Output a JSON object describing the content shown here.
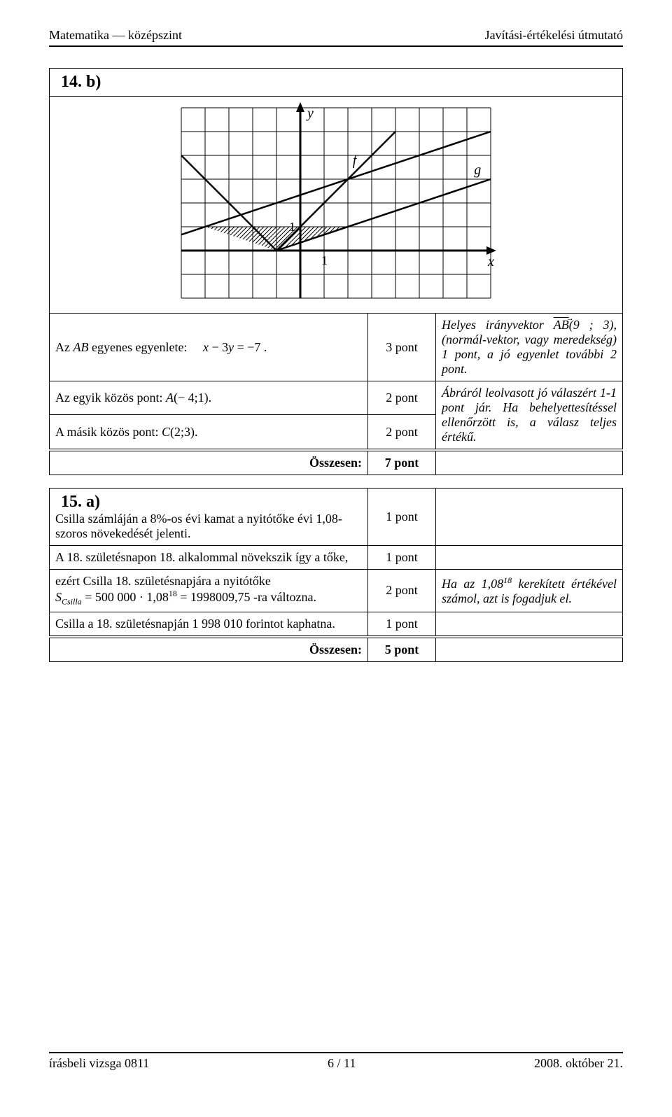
{
  "header": {
    "left": "Matematika — középszint",
    "right": "Javítási-értékelési útmutató"
  },
  "problem14b": {
    "title": "14. b)",
    "chart": {
      "type": "line",
      "grid_color": "#000000",
      "background_color": "#ffffff",
      "cols": 13,
      "rows": 8,
      "origin_col": 5,
      "origin_row": 6,
      "y_label": "y",
      "x_label": "x",
      "f_label": "f",
      "g_label": "g",
      "one_label": "1",
      "lines": [
        {
          "name": "g",
          "pts": [
            [
              -6,
              -1.666
            ],
            [
              9,
              3.333
            ]
          ]
        },
        {
          "name": "f_left",
          "pts": [
            [
              -6,
              5
            ],
            [
              -1,
              0
            ]
          ]
        },
        {
          "name": "f_right",
          "pts": [
            [
              -1,
              0
            ],
            [
              9,
              3.333
            ]
          ]
        },
        {
          "name": "f_left2",
          "pts": [
            [
              -1,
              0
            ],
            [
              3,
              4
            ]
          ]
        }
      ],
      "shaded_region": [
        [
          -4,
          1
        ],
        [
          -1,
          0
        ],
        [
          -1,
          -0.333
        ],
        [
          2,
          1
        ]
      ]
    },
    "rows": [
      {
        "left_html": "Az <i>AB</i> egyenes egyenlete:&nbsp;&nbsp;&nbsp;&nbsp; <i>x</i> − 3<i>y</i> = −7 .",
        "pts": "3 pont",
        "expl_html": "Helyes irányvektor <span class=\"ov\">AB<span class=\"ov-arrow\">→</span></span>(9 ; 3), (normál-vektor, vagy meredekség) 1 pont, a jó egyenlet további 2 pont.",
        "rowspan_expl": 1
      },
      {
        "left_html": "Az egyik közös pont: <i>A</i>(− 4;1).",
        "pts": "2 pont",
        "expl_html": "Ábráról leolvasott jó válaszért 1-1 pont jár. Ha behelyettesítéssel ellenőrzött is, a válasz teljes értékű.",
        "rowspan_expl": 2
      },
      {
        "left_html": "A másik közös pont: <i>C</i>(2;3).",
        "pts": "2 pont"
      }
    ],
    "total_label": "Összesen:",
    "total_pts": "7 pont"
  },
  "problem15a": {
    "title": "15. a)",
    "rows": [
      {
        "left_html": "Csilla számláján a 8%-os évi kamat a nyitótőke évi 1,08-szoros növekedését jelenti.",
        "pts": "1 pont",
        "expl_html": ""
      },
      {
        "left_html": "A 18. születésnapon 18. alkalommal növekszik így a tőke,",
        "pts": "1 pont",
        "expl_html": ""
      },
      {
        "left_html": "ezért Csilla 18. születésnapjára a nyitótőke<br><i>S</i><span class=\"sub\"><i>Csilla</i></span> = 500 000 · 1,08<span class=\"sup\">18</span> = 1998009,75 -ra változna.",
        "pts": "2 pont",
        "expl_html": "Ha az 1,08<span class=\"sup\">18</span> kerekített értékével számol, azt is fogadjuk el."
      },
      {
        "left_html": "Csilla a 18. születésnapján 1 998 010 forintot kaphatna.",
        "pts": "1 pont",
        "expl_html": ""
      }
    ],
    "total_label": "Összesen:",
    "total_pts": "5 pont"
  },
  "footer": {
    "left": "írásbeli vizsga 0811",
    "center": "6 / 11",
    "right": "2008. október 21."
  }
}
